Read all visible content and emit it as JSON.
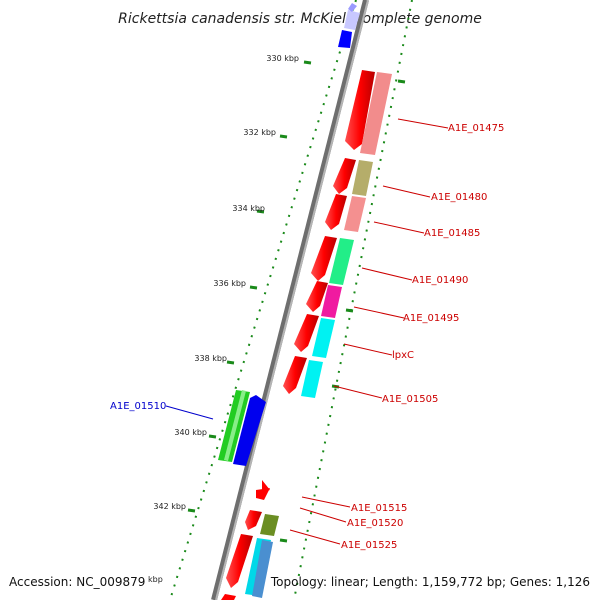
{
  "title": "Rickettsia canadensis str. McKiel, complete genome",
  "accession": "Accession: NC_009879",
  "footer_info": "Topology: linear; Length: 1,159,772 bp; Genes: 1,126",
  "axis_unit": "kbp",
  "ticks": [
    "330 kbp",
    "332 kbp",
    "334 kbp",
    "336 kbp",
    "338 kbp",
    "340 kbp",
    "342 kbp"
  ],
  "gene_labels": {
    "a1e_01475": "A1E_01475",
    "a1e_01480": "A1E_01480",
    "a1e_01485": "A1E_01485",
    "a1e_01490": "A1E_01490",
    "a1e_01495": "A1E_01495",
    "lpxc": "lpxC",
    "a1e_01505": "A1E_01505",
    "a1e_01510": "A1E_01510",
    "a1e_01515": "A1E_01515",
    "a1e_01520": "A1E_01520",
    "a1e_01525": "A1E_01525"
  },
  "colors": {
    "cds_red": "#ff0000",
    "label_red": "#cc0000",
    "label_blue": "#0000cc",
    "backbone": "#888888",
    "tick_green": "#1a8a1a"
  }
}
